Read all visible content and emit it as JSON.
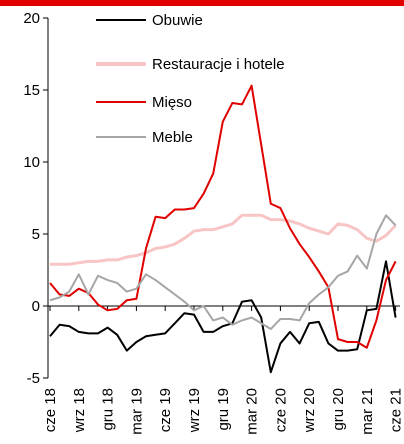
{
  "chart_data": {
    "type": "line",
    "categories": [
      "cze 18",
      null,
      null,
      "wrz 18",
      null,
      null,
      "gru 18",
      null,
      null,
      "mar 19",
      null,
      null,
      "cze 19",
      null,
      null,
      "wrz 19",
      null,
      null,
      "gru 19",
      null,
      null,
      "mar 20",
      null,
      null,
      "cze 20",
      null,
      null,
      "wrz 20",
      null,
      null,
      "gru 20",
      null,
      null,
      "mar 21",
      null,
      null,
      "cze 21"
    ],
    "series": [
      {
        "name": "Obuwie",
        "color": "#000000",
        "values": [
          -2.1,
          -1.3,
          -1.4,
          -1.8,
          -1.9,
          -1.9,
          -1.5,
          -2.0,
          -3.1,
          -2.5,
          -2.1,
          -2.0,
          -1.9,
          -1.2,
          -0.5,
          -0.6,
          -1.8,
          -1.8,
          -1.4,
          -1.2,
          0.3,
          0.4,
          -0.8,
          -4.6,
          -2.6,
          -1.8,
          -2.6,
          -1.2,
          -1.1,
          -2.6,
          -3.1,
          -3.1,
          -3.0,
          -0.3,
          -0.2,
          3.1,
          -0.8
        ]
      },
      {
        "name": "Restauracje i hotele",
        "color": "#f7c5c5",
        "values": [
          2.9,
          2.9,
          2.9,
          3.0,
          3.1,
          3.1,
          3.2,
          3.2,
          3.4,
          3.5,
          3.7,
          4.0,
          4.1,
          4.3,
          4.7,
          5.2,
          5.3,
          5.3,
          5.5,
          5.7,
          6.3,
          6.3,
          6.3,
          6.0,
          6.0,
          5.9,
          5.7,
          5.4,
          5.2,
          5.0,
          5.7,
          5.6,
          5.3,
          4.7,
          4.5,
          4.9,
          5.6
        ]
      },
      {
        "name": "Mięso",
        "color": "#e00000",
        "values": [
          1.6,
          0.8,
          0.7,
          1.2,
          0.9,
          0.1,
          -0.3,
          -0.2,
          0.4,
          0.5,
          4.0,
          6.2,
          6.1,
          6.7,
          6.7,
          6.8,
          7.8,
          9.2,
          12.8,
          14.1,
          14.0,
          15.3,
          11.2,
          7.1,
          6.8,
          5.4,
          4.3,
          3.4,
          2.4,
          1.3,
          -2.3,
          -2.5,
          -2.5,
          -2.9,
          -1.0,
          1.8,
          3.1
        ]
      },
      {
        "name": "Meble",
        "color": "#a6a6a6",
        "values": [
          0.4,
          0.6,
          1.0,
          2.2,
          0.8,
          2.1,
          1.8,
          1.6,
          1.0,
          1.2,
          2.2,
          1.8,
          1.3,
          0.8,
          0.3,
          -0.3,
          0.0,
          -1.0,
          -0.8,
          -1.3,
          -1.0,
          -0.8,
          -1.2,
          -1.6,
          -0.9,
          -0.9,
          -1.0,
          0.2,
          0.8,
          1.3,
          2.1,
          2.4,
          3.5,
          2.6,
          5.0,
          6.3,
          5.6
        ]
      }
    ],
    "ylim": [
      -5,
      20
    ],
    "yticks": [
      -5,
      0,
      5,
      10,
      15,
      20
    ]
  }
}
